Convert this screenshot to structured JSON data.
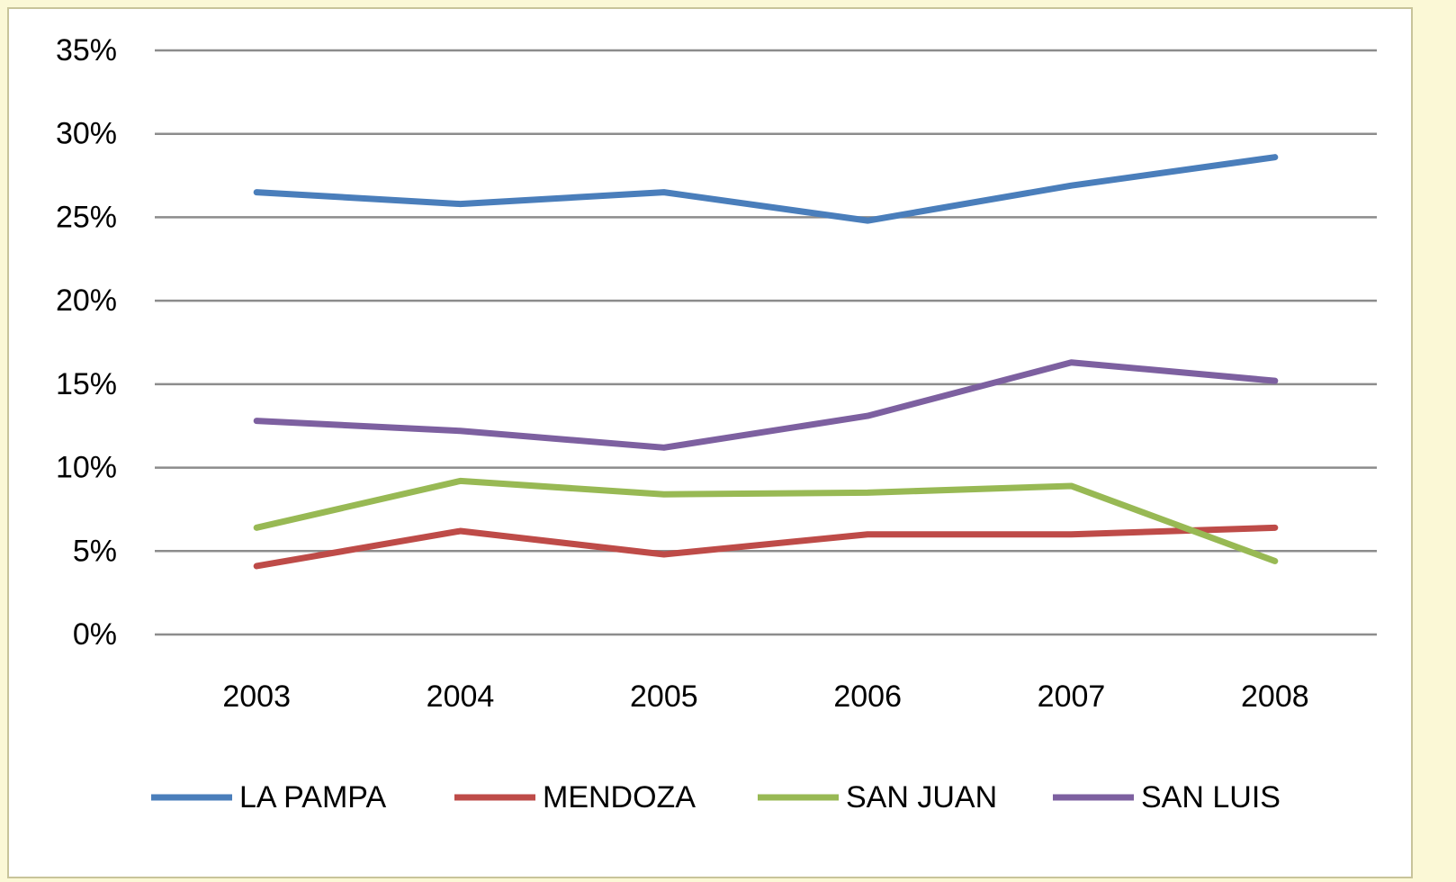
{
  "chart_data": {
    "type": "line",
    "categories": [
      "2003",
      "2004",
      "2005",
      "2006",
      "2007",
      "2008"
    ],
    "series": [
      {
        "name": "LA PAMPA",
        "color": "#4a7ebb",
        "values": [
          26.5,
          25.8,
          26.5,
          24.8,
          26.9,
          28.6
        ]
      },
      {
        "name": "MENDOZA",
        "color": "#be4b48",
        "values": [
          4.1,
          6.2,
          4.8,
          6.0,
          6.0,
          6.4
        ]
      },
      {
        "name": "SAN JUAN",
        "color": "#98b954",
        "values": [
          6.4,
          9.2,
          8.4,
          8.5,
          8.9,
          4.4
        ]
      },
      {
        "name": "SAN LUIS",
        "color": "#7d60a0",
        "values": [
          12.8,
          12.2,
          11.2,
          13.1,
          16.3,
          15.2
        ]
      }
    ],
    "ylim": [
      0,
      35
    ],
    "yticks": [
      {
        "value": 0,
        "label": "0%"
      },
      {
        "value": 5,
        "label": "5%"
      },
      {
        "value": 10,
        "label": "10%"
      },
      {
        "value": 15,
        "label": "15%"
      },
      {
        "value": 20,
        "label": "20%"
      },
      {
        "value": 25,
        "label": "25%"
      },
      {
        "value": 30,
        "label": "30%"
      },
      {
        "value": 35,
        "label": "35%"
      }
    ],
    "grid": true,
    "legend": "bottom"
  }
}
